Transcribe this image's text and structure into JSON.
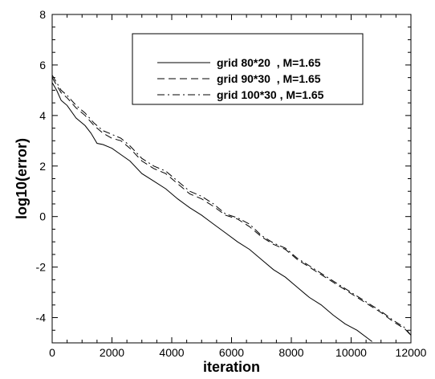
{
  "chart_data": {
    "type": "line",
    "title": "",
    "xlabel": "iteration",
    "ylabel": "log10(error)",
    "xlim": [
      0,
      12000
    ],
    "ylim": [
      -5,
      8
    ],
    "xticks": [
      0,
      2000,
      4000,
      6000,
      8000,
      10000,
      12000
    ],
    "yticks": [
      -4,
      -2,
      0,
      2,
      4,
      6,
      8
    ],
    "grid": false,
    "legend_position": "top-right",
    "series": [
      {
        "name": "grid 80*20  , M=1.65",
        "style": "solid",
        "color": "#000000",
        "x": [
          0,
          150,
          300,
          500,
          800,
          1100,
          1300,
          1500,
          1700,
          2000,
          2300,
          2600,
          3000,
          3400,
          3800,
          4200,
          4600,
          5000,
          5400,
          5800,
          6200,
          6600,
          7000,
          7400,
          7800,
          8200,
          8600,
          9000,
          9400,
          9800,
          10200,
          10700
        ],
        "y": [
          5.3,
          5.0,
          4.6,
          4.4,
          3.9,
          3.6,
          3.3,
          2.9,
          2.85,
          2.7,
          2.45,
          2.2,
          1.7,
          1.4,
          1.1,
          0.7,
          0.35,
          0.05,
          -0.3,
          -0.65,
          -1.0,
          -1.3,
          -1.7,
          -2.1,
          -2.4,
          -2.8,
          -3.2,
          -3.5,
          -3.9,
          -4.25,
          -4.5,
          -4.95
        ]
      },
      {
        "name": "grid 90*30  , M=1.65",
        "style": "dashed",
        "color": "#000000",
        "x": [
          0,
          150,
          300,
          500,
          800,
          1100,
          1400,
          1700,
          2000,
          2300,
          2600,
          3000,
          3400,
          3800,
          4200,
          4600,
          5000,
          5400,
          5800,
          6200,
          6600,
          7000,
          7400,
          7800,
          8200,
          8600,
          9000,
          9400,
          9800,
          10200,
          10600,
          11000,
          11400,
          11800,
          12000
        ],
        "y": [
          5.5,
          5.2,
          4.9,
          4.7,
          4.3,
          4.0,
          3.6,
          3.3,
          3.1,
          3.0,
          2.7,
          2.2,
          1.9,
          1.7,
          1.3,
          0.9,
          0.7,
          0.4,
          0.05,
          -0.1,
          -0.4,
          -0.8,
          -1.1,
          -1.3,
          -1.7,
          -2.0,
          -2.3,
          -2.6,
          -2.9,
          -3.2,
          -3.5,
          -3.8,
          -4.15,
          -4.45,
          -4.7
        ]
      },
      {
        "name": "grid 100*30 , M=1.65",
        "style": "dashdot",
        "color": "#000000",
        "x": [
          0,
          150,
          300,
          500,
          800,
          1100,
          1400,
          1700,
          2000,
          2300,
          2600,
          3000,
          3400,
          3800,
          4200,
          4600,
          5000,
          5400,
          5800,
          6200,
          6600,
          7000,
          7400,
          7800,
          8200,
          8600,
          9000,
          9400,
          9800,
          10200,
          10600,
          11000,
          11400,
          11800,
          12000
        ],
        "y": [
          5.6,
          5.3,
          5.0,
          4.8,
          4.4,
          4.1,
          3.7,
          3.4,
          3.25,
          3.1,
          2.8,
          2.3,
          2.0,
          1.8,
          1.4,
          1.0,
          0.8,
          0.5,
          0.1,
          -0.05,
          -0.3,
          -0.75,
          -1.05,
          -1.25,
          -1.65,
          -1.95,
          -2.25,
          -2.55,
          -2.85,
          -3.15,
          -3.45,
          -3.75,
          -4.1,
          -4.4,
          -4.7
        ]
      }
    ]
  }
}
